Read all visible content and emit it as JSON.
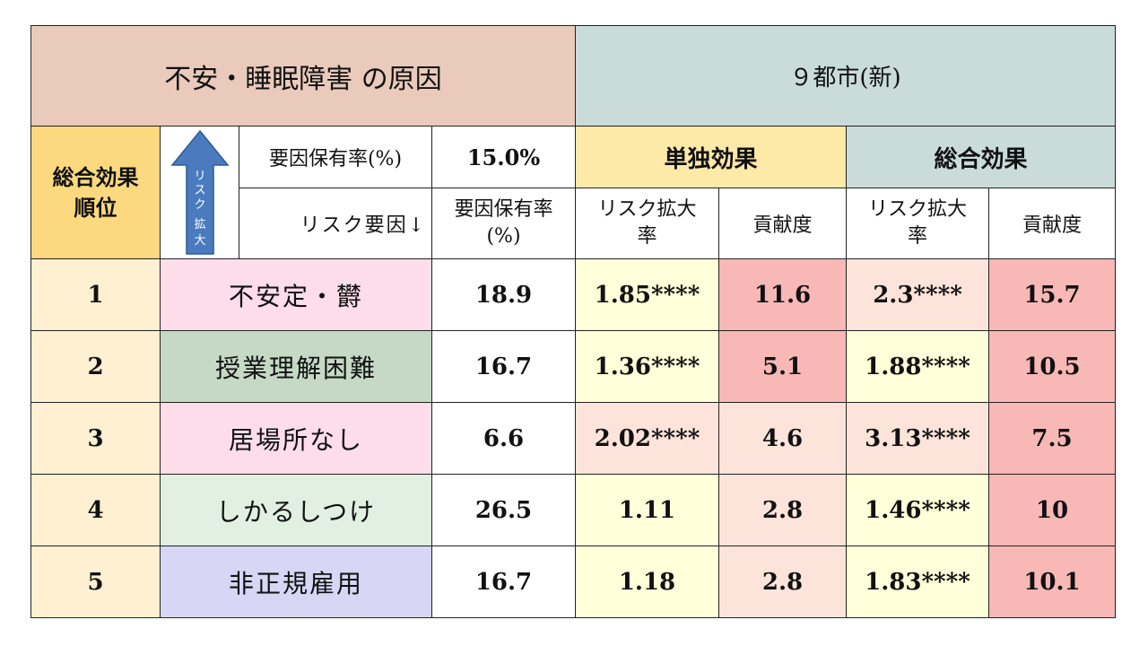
{
  "title_left": "不安・睡眠障害 の原因",
  "title_right": "９都市(新)",
  "rank_header": [
    "総合効果",
    "順位"
  ],
  "arrow_label": [
    "リ",
    "ス",
    "ク",
    "拡",
    "大"
  ],
  "prevalence_label": "要因保有率(%)",
  "prevalence_value": "15.0%",
  "single_effect_label": "単独効果",
  "total_effect_label": "総合効果",
  "risk_factor_label": "リスク要因↓",
  "col_prevalence": [
    "要因保有率",
    "(%)"
  ],
  "col_risk_ratio": [
    "リスク拡大",
    "率"
  ],
  "col_contribution": "貢献度",
  "colors": {
    "title_left_bg": "#e9cabb",
    "title_right_bg": "#c9dcda",
    "rank_header_bg": "#fcd97e",
    "arrow": "#4a7bbf",
    "contribution_high": "#f8b8b6"
  },
  "rows": [
    {
      "rank": "1",
      "factor": "不安定・欝",
      "prevalence": "18.9",
      "single_rr": "1.85****",
      "single_contrib": "11.6",
      "total_rr": "2.3****",
      "total_contrib": "15.7"
    },
    {
      "rank": "2",
      "factor": "授業理解困難",
      "prevalence": "16.7",
      "single_rr": "1.36****",
      "single_contrib": "5.1",
      "total_rr": "1.88****",
      "total_contrib": "10.5"
    },
    {
      "rank": "3",
      "factor": "居場所なし",
      "prevalence": "6.6",
      "single_rr": "2.02****",
      "single_contrib": "4.6",
      "total_rr": "3.13****",
      "total_contrib": "7.5"
    },
    {
      "rank": "4",
      "factor": "しかるしつけ",
      "prevalence": "26.5",
      "single_rr": "1.11",
      "single_contrib": "2.8",
      "total_rr": "1.46****",
      "total_contrib": "10"
    },
    {
      "rank": "5",
      "factor": "非正規雇用",
      "prevalence": "16.7",
      "single_rr": "1.18",
      "single_contrib": "2.8",
      "total_rr": "1.83****",
      "total_contrib": "10.1"
    }
  ]
}
